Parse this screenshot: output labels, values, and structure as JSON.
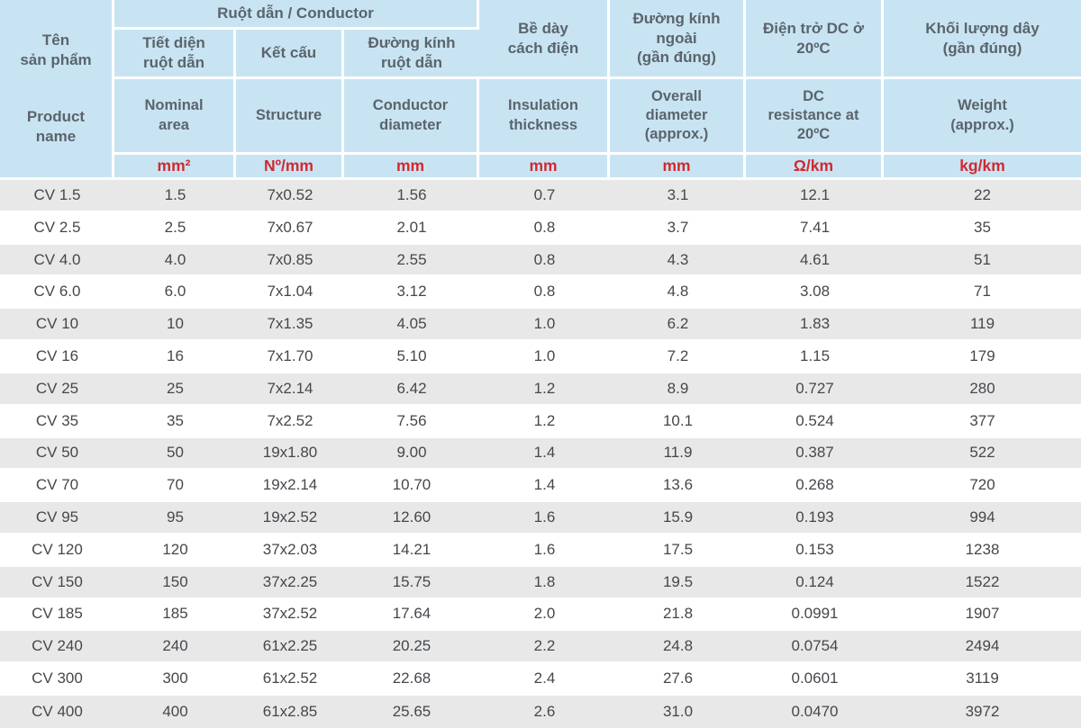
{
  "colors": {
    "header_bg": "#c8e4f3",
    "header_text": "#5b646c",
    "unit_text": "#d2292f",
    "row_alt_bg": "#e8e8e8",
    "data_text": "#44484c"
  },
  "table": {
    "header": {
      "product": {
        "vi": "Tên\nsản phẩm",
        "en": "Product\nname"
      },
      "conductor_group": "Ruột dẫn / Conductor",
      "cols": [
        {
          "vi": "Tiết diện\nruột dẫn",
          "en": "Nominal\narea",
          "unit": "mm²"
        },
        {
          "vi": "Kết cấu",
          "en": "Structure",
          "unit": "Nº/mm"
        },
        {
          "vi": "Đường kính\nruột dẫn",
          "en": "Conductor\ndiameter",
          "unit": "mm"
        },
        {
          "vi": "Bề dày\ncách điện",
          "en": "Insulation\nthickness",
          "unit": "mm"
        },
        {
          "vi": "Đường kính\nngoài\n(gần đúng)",
          "en": "Overall\ndiameter\n(approx.)",
          "unit": "mm"
        },
        {
          "vi": "Điện trở DC ở\n20ºC",
          "en": "DC\nresistance at\n20ºC",
          "unit": "Ω/km"
        },
        {
          "vi": "Khối lượng dây\n(gần đúng)",
          "en": "Weight\n(approx.)",
          "unit": "kg/km"
        }
      ]
    },
    "rows": [
      [
        "CV 1.5",
        "1.5",
        "7x0.52",
        "1.56",
        "0.7",
        "3.1",
        "12.1",
        "22"
      ],
      [
        "CV 2.5",
        "2.5",
        "7x0.67",
        "2.01",
        "0.8",
        "3.7",
        "7.41",
        "35"
      ],
      [
        "CV 4.0",
        "4.0",
        "7x0.85",
        "2.55",
        "0.8",
        "4.3",
        "4.61",
        "51"
      ],
      [
        "CV 6.0",
        "6.0",
        "7x1.04",
        "3.12",
        "0.8",
        "4.8",
        "3.08",
        "71"
      ],
      [
        "CV 10",
        "10",
        "7x1.35",
        "4.05",
        "1.0",
        "6.2",
        "1.83",
        "119"
      ],
      [
        "CV 16",
        "16",
        "7x1.70",
        "5.10",
        "1.0",
        "7.2",
        "1.15",
        "179"
      ],
      [
        "CV 25",
        "25",
        "7x2.14",
        "6.42",
        "1.2",
        "8.9",
        "0.727",
        "280"
      ],
      [
        "CV 35",
        "35",
        "7x2.52",
        "7.56",
        "1.2",
        "10.1",
        "0.524",
        "377"
      ],
      [
        "CV 50",
        "50",
        "19x1.80",
        "9.00",
        "1.4",
        "11.9",
        "0.387",
        "522"
      ],
      [
        "CV 70",
        "70",
        "19x2.14",
        "10.70",
        "1.4",
        "13.6",
        "0.268",
        "720"
      ],
      [
        "CV 95",
        "95",
        "19x2.52",
        "12.60",
        "1.6",
        "15.9",
        "0.193",
        "994"
      ],
      [
        "CV 120",
        "120",
        "37x2.03",
        "14.21",
        "1.6",
        "17.5",
        "0.153",
        "1238"
      ],
      [
        "CV 150",
        "150",
        "37x2.25",
        "15.75",
        "1.8",
        "19.5",
        "0.124",
        "1522"
      ],
      [
        "CV 185",
        "185",
        "37x2.52",
        "17.64",
        "2.0",
        "21.8",
        "0.0991",
        "1907"
      ],
      [
        "CV 240",
        "240",
        "61x2.25",
        "20.25",
        "2.2",
        "24.8",
        "0.0754",
        "2494"
      ],
      [
        "CV 300",
        "300",
        "61x2.52",
        "22.68",
        "2.4",
        "27.6",
        "0.0601",
        "3119"
      ],
      [
        "CV 400",
        "400",
        "61x2.85",
        "25.65",
        "2.6",
        "31.0",
        "0.0470",
        "3972"
      ]
    ]
  }
}
